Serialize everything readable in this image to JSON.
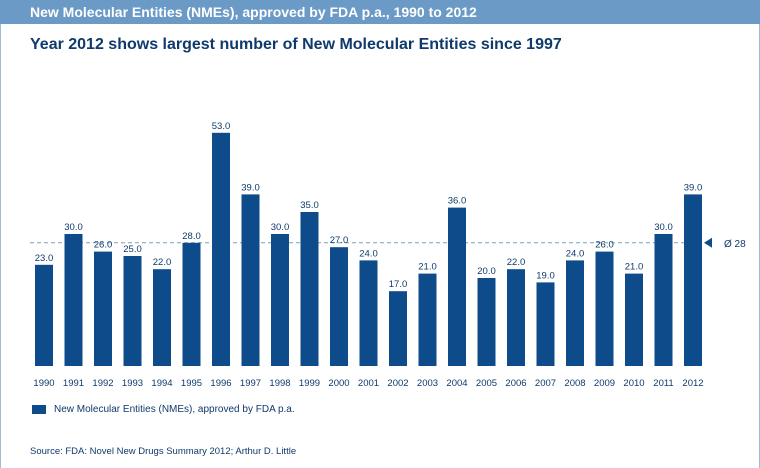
{
  "header": {
    "bar_title": "New Molecular Entities (NMEs), approved by FDA p.a., 1990 to 2012",
    "headline": "Year 2012 shows largest number of New Molecular Entities since 1997"
  },
  "chart_data": {
    "type": "bar",
    "categories": [
      "1990",
      "1991",
      "1992",
      "1993",
      "1994",
      "1995",
      "1996",
      "1997",
      "1998",
      "1999",
      "2000",
      "2001",
      "2002",
      "2003",
      "2004",
      "2005",
      "2006",
      "2007",
      "2008",
      "2009",
      "2010",
      "2011",
      "2012"
    ],
    "series": [
      {
        "name": "New Molecular Entities (NMEs), approved by FDA p.a.",
        "values": [
          23,
          30,
          26,
          25,
          22,
          28,
          53,
          39,
          30,
          35,
          27,
          24,
          17,
          21,
          36,
          20,
          22,
          19,
          24,
          26,
          21,
          30,
          39
        ],
        "labels": [
          "23.0",
          "30.0",
          "26.0",
          "25.0",
          "22.0",
          "28.0",
          "53.0",
          "39.0",
          "30.0",
          "35.0",
          "27.0",
          "24.0",
          "17.0",
          "21.0",
          "36.0",
          "20.0",
          "22.0",
          "19.0",
          "24.0",
          "26.0",
          "21.0",
          "30.0",
          "39.0"
        ]
      }
    ],
    "average_value": 28,
    "average_label": "Ø 28",
    "ylim": [
      0,
      55
    ],
    "grid": false,
    "legend_position": "bottom-left",
    "bar_color": "#0d4b8a",
    "text_color": "#0f3a6b",
    "average_line_color": "#7f9fbf"
  },
  "source": "Source: FDA: Novel New Drugs Summary 2012; Arthur D. Little"
}
